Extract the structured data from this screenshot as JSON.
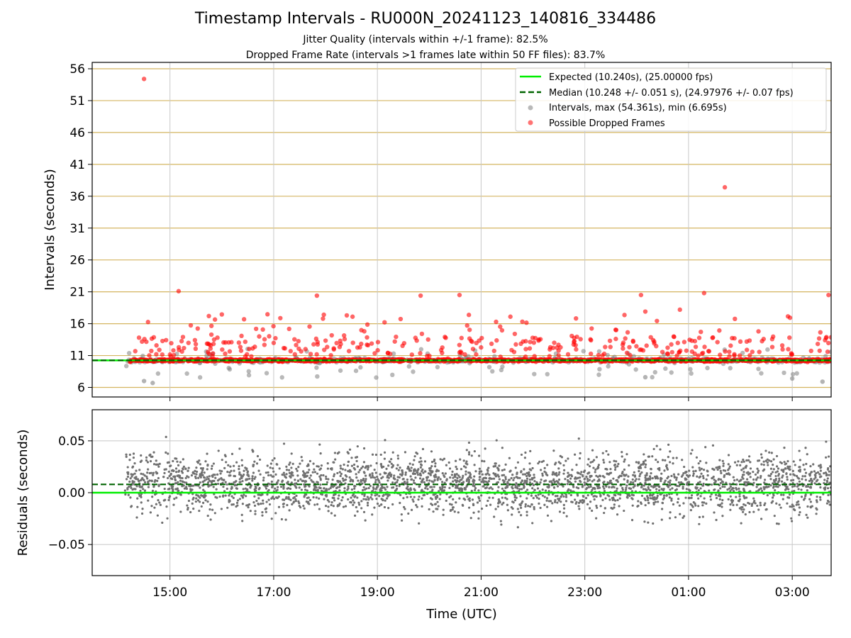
{
  "header": {
    "title": "Timestamp Intervals - RU000N_20241123_140816_334486",
    "subtitle1": "Jitter Quality (intervals within +/-1 frame): 82.5%",
    "subtitle2": "Dropped Frame Rate (intervals >1 frames late within 50 FF files): 83.7%"
  },
  "colors": {
    "expected": "#00ee00",
    "median": "#006400",
    "intervals": "#808080",
    "dropped": "#ff0000",
    "hgrid_top": "#d4b560",
    "grid": "#c8c8c8"
  },
  "chart_data": [
    {
      "type": "scatter",
      "ylabel": "Intervals (seconds)",
      "x_range": [
        "13:30",
        "03:45"
      ],
      "ylim": [
        4.5,
        57
      ],
      "yticks": [
        6,
        11,
        16,
        21,
        26,
        31,
        36,
        41,
        46,
        51,
        56
      ],
      "grid": "horizontal at y ticks (gold), vertical at x ticks (gray)",
      "legend_position": "top-right",
      "legend": [
        "Expected (10.240s), (25.00000 fps)",
        "Median (10.248 +/- 0.051 s), (24.97976 +/- 0.07 fps)",
        "Intervals, max (54.361s), min (6.695s)",
        "Possible Dropped Frames"
      ],
      "expected_interval": 10.24,
      "median_interval": 10.248,
      "max_interval": 54.361,
      "min_interval": 6.695,
      "data_start": "14:08",
      "data_end": "03:45",
      "notable_points": [
        {
          "series": "Possible Dropped Frames",
          "x": "14:30",
          "y": 54.4
        },
        {
          "series": "Possible Dropped Frames",
          "x": "01:42",
          "y": 37.4
        },
        {
          "series": "Possible Dropped Frames",
          "x": "15:10",
          "y": 21.1
        },
        {
          "series": "Possible Dropped Frames",
          "x": "17:50",
          "y": 20.4
        },
        {
          "series": "Possible Dropped Frames",
          "x": "19:50",
          "y": 20.4
        },
        {
          "series": "Possible Dropped Frames",
          "x": "20:35",
          "y": 20.5
        },
        {
          "series": "Possible Dropped Frames",
          "x": "00:05",
          "y": 20.5
        },
        {
          "series": "Possible Dropped Frames",
          "x": "01:18",
          "y": 20.8
        },
        {
          "series": "Possible Dropped Frames",
          "x": "03:42",
          "y": 20.5
        },
        {
          "series": "Possible Dropped Frames",
          "x": "00:50",
          "y": 18.2
        },
        {
          "series": "Possible Dropped Frames",
          "x": "00:10",
          "y": 17.9
        },
        {
          "series": "Possible Dropped Frames",
          "x": "15:45",
          "y": 17.2
        },
        {
          "series": "Intervals",
          "x": "14:40",
          "y": 6.7
        },
        {
          "series": "Intervals",
          "x": "14:30",
          "y": 7.0
        },
        {
          "series": "Intervals",
          "x": "03:35",
          "y": 6.9
        },
        {
          "series": "Intervals",
          "x": "00:10",
          "y": 7.6
        },
        {
          "series": "Intervals",
          "x": "03:00",
          "y": 7.4
        }
      ]
    },
    {
      "type": "scatter",
      "ylabel": "Residuals (seconds)",
      "ylim": [
        -0.08,
        0.08
      ],
      "yticks": [
        "0.05",
        "0.00",
        "−0.05"
      ],
      "ytick_values": [
        0.05,
        0.0,
        -0.05
      ],
      "expected_residual": 0.0,
      "median_residual": 0.008,
      "residual_spread": 0.02
    }
  ],
  "x_axis": {
    "label": "Time (UTC)",
    "ticks": [
      "15:00",
      "17:00",
      "19:00",
      "21:00",
      "23:00",
      "01:00",
      "03:00"
    ]
  }
}
